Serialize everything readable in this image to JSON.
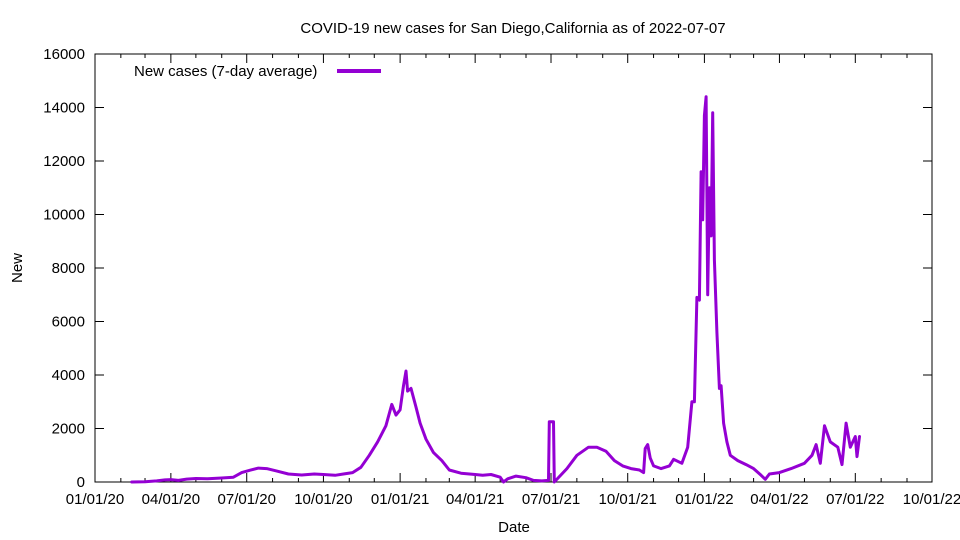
{
  "chart_data": {
    "type": "line",
    "title": "COVID-19 new cases for San Diego,California as of 2022-07-07",
    "xlabel": "Date",
    "ylabel": "New",
    "xlim": [
      "2020-01-01",
      "2022-10-01"
    ],
    "ylim": [
      0,
      16000
    ],
    "x_ticks": [
      "01/01/20",
      "04/01/20",
      "07/01/20",
      "10/01/20",
      "01/01/21",
      "04/01/21",
      "07/01/21",
      "10/01/21",
      "01/01/22",
      "04/01/22",
      "07/01/22",
      "10/01/22"
    ],
    "y_ticks": [
      "0",
      "2000",
      "4000",
      "6000",
      "8000",
      "10000",
      "12000",
      "14000",
      "16000"
    ],
    "grid": false,
    "legend_position": "top-left",
    "colors": {
      "series": "#9400d3",
      "axis": "#000000"
    },
    "series": [
      {
        "name": "New cases (7-day average)",
        "points": [
          [
            "2020-02-14",
            0
          ],
          [
            "2020-03-01",
            10
          ],
          [
            "2020-03-15",
            40
          ],
          [
            "2020-03-25",
            80
          ],
          [
            "2020-04-01",
            90
          ],
          [
            "2020-04-10",
            60
          ],
          [
            "2020-04-20",
            110
          ],
          [
            "2020-05-01",
            130
          ],
          [
            "2020-05-15",
            120
          ],
          [
            "2020-06-01",
            150
          ],
          [
            "2020-06-15",
            180
          ],
          [
            "2020-06-25",
            350
          ],
          [
            "2020-07-05",
            440
          ],
          [
            "2020-07-15",
            520
          ],
          [
            "2020-07-25",
            500
          ],
          [
            "2020-08-05",
            420
          ],
          [
            "2020-08-20",
            300
          ],
          [
            "2020-09-05",
            260
          ],
          [
            "2020-09-20",
            300
          ],
          [
            "2020-10-01",
            280
          ],
          [
            "2020-10-15",
            250
          ],
          [
            "2020-10-25",
            300
          ],
          [
            "2020-11-05",
            350
          ],
          [
            "2020-11-15",
            550
          ],
          [
            "2020-11-25",
            1000
          ],
          [
            "2020-12-05",
            1500
          ],
          [
            "2020-12-15",
            2100
          ],
          [
            "2020-12-22",
            2900
          ],
          [
            "2020-12-27",
            2500
          ],
          [
            "2021-01-01",
            2700
          ],
          [
            "2021-01-05",
            3600
          ],
          [
            "2021-01-08",
            4150
          ],
          [
            "2021-01-10",
            3400
          ],
          [
            "2021-01-14",
            3500
          ],
          [
            "2021-01-20",
            2800
          ],
          [
            "2021-01-25",
            2200
          ],
          [
            "2021-02-01",
            1600
          ],
          [
            "2021-02-10",
            1100
          ],
          [
            "2021-02-20",
            800
          ],
          [
            "2021-03-01",
            450
          ],
          [
            "2021-03-15",
            330
          ],
          [
            "2021-04-01",
            280
          ],
          [
            "2021-04-10",
            250
          ],
          [
            "2021-04-20",
            280
          ],
          [
            "2021-05-01",
            180
          ],
          [
            "2021-05-05",
            0
          ],
          [
            "2021-05-10",
            120
          ],
          [
            "2021-05-20",
            220
          ],
          [
            "2021-06-01",
            160
          ],
          [
            "2021-06-10",
            60
          ],
          [
            "2021-06-20",
            40
          ],
          [
            "2021-06-28",
            60
          ],
          [
            "2021-06-29",
            2250
          ],
          [
            "2021-07-04",
            2250
          ],
          [
            "2021-07-05",
            0
          ],
          [
            "2021-07-20",
            500
          ],
          [
            "2021-08-01",
            1000
          ],
          [
            "2021-08-15",
            1300
          ],
          [
            "2021-08-25",
            1300
          ],
          [
            "2021-09-05",
            1150
          ],
          [
            "2021-09-15",
            800
          ],
          [
            "2021-09-25",
            600
          ],
          [
            "2021-10-05",
            500
          ],
          [
            "2021-10-15",
            450
          ],
          [
            "2021-10-20",
            350
          ],
          [
            "2021-10-22",
            1250
          ],
          [
            "2021-10-25",
            1400
          ],
          [
            "2021-10-28",
            900
          ],
          [
            "2021-11-01",
            600
          ],
          [
            "2021-11-10",
            500
          ],
          [
            "2021-11-20",
            600
          ],
          [
            "2021-11-25",
            850
          ],
          [
            "2021-12-05",
            700
          ],
          [
            "2021-12-12",
            1300
          ],
          [
            "2021-12-17",
            3000
          ],
          [
            "2021-12-20",
            3000
          ],
          [
            "2021-12-23",
            6900
          ],
          [
            "2021-12-26",
            6800
          ],
          [
            "2021-12-28",
            11600
          ],
          [
            "2021-12-30",
            9800
          ],
          [
            "2022-01-01",
            13700
          ],
          [
            "2022-01-03",
            14400
          ],
          [
            "2022-01-05",
            7000
          ],
          [
            "2022-01-07",
            11000
          ],
          [
            "2022-01-09",
            9200
          ],
          [
            "2022-01-11",
            13800
          ],
          [
            "2022-01-13",
            8300
          ],
          [
            "2022-01-16",
            5600
          ],
          [
            "2022-01-19",
            3500
          ],
          [
            "2022-01-21",
            3600
          ],
          [
            "2022-01-24",
            2200
          ],
          [
            "2022-01-28",
            1500
          ],
          [
            "2022-02-01",
            1000
          ],
          [
            "2022-02-10",
            800
          ],
          [
            "2022-02-20",
            650
          ],
          [
            "2022-03-01",
            500
          ],
          [
            "2022-03-10",
            250
          ],
          [
            "2022-03-15",
            100
          ],
          [
            "2022-03-20",
            300
          ],
          [
            "2022-04-01",
            350
          ],
          [
            "2022-04-15",
            500
          ],
          [
            "2022-05-01",
            700
          ],
          [
            "2022-05-10",
            1000
          ],
          [
            "2022-05-15",
            1400
          ],
          [
            "2022-05-20",
            700
          ],
          [
            "2022-05-25",
            2100
          ],
          [
            "2022-06-01",
            1500
          ],
          [
            "2022-06-10",
            1300
          ],
          [
            "2022-06-15",
            650
          ],
          [
            "2022-06-20",
            2200
          ],
          [
            "2022-06-25",
            1300
          ],
          [
            "2022-07-01",
            1700
          ],
          [
            "2022-07-03",
            950
          ],
          [
            "2022-07-06",
            1700
          ]
        ]
      }
    ]
  }
}
